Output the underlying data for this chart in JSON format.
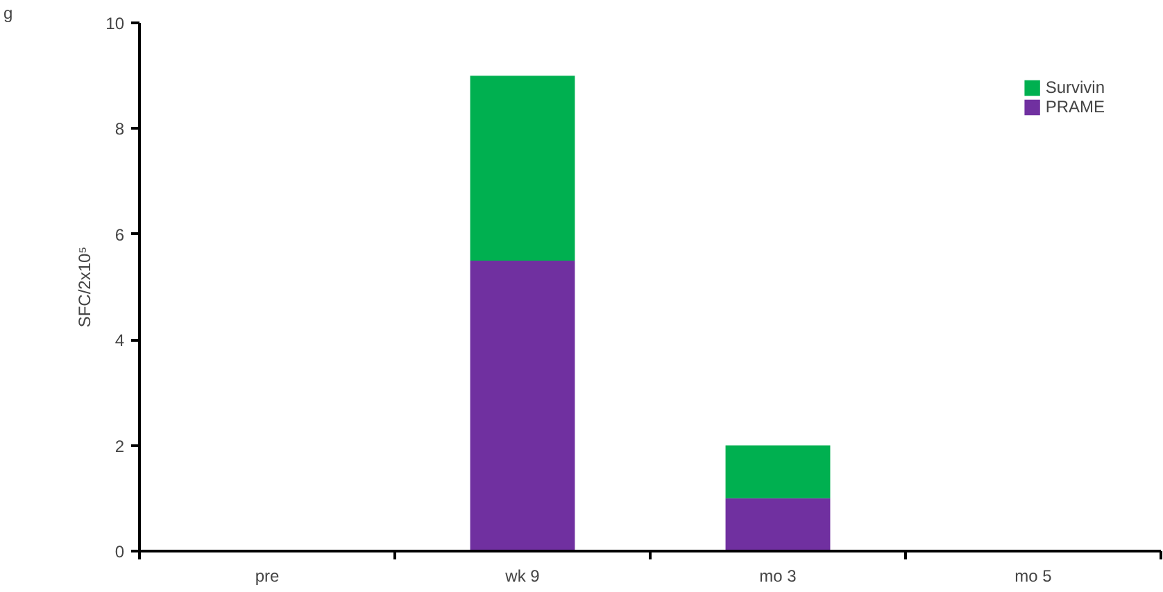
{
  "chart_data": {
    "type": "bar",
    "stacked": true,
    "ylabel": "SFC/2x10⁵",
    "categories": [
      "pre",
      "wk 9",
      "mo 3",
      "mo 5"
    ],
    "series": [
      {
        "name": "PRAME",
        "color": "#7030a0",
        "values": [
          0,
          5.5,
          1,
          0
        ]
      },
      {
        "name": "Survivin",
        "color": "#00b050",
        "values": [
          0,
          3.5,
          1,
          0
        ]
      }
    ],
    "ylim": [
      0,
      10
    ],
    "yticks": [
      0,
      2,
      4,
      6,
      8,
      10
    ],
    "grid": false,
    "legend": "top right",
    "annotations": [
      "g"
    ]
  }
}
